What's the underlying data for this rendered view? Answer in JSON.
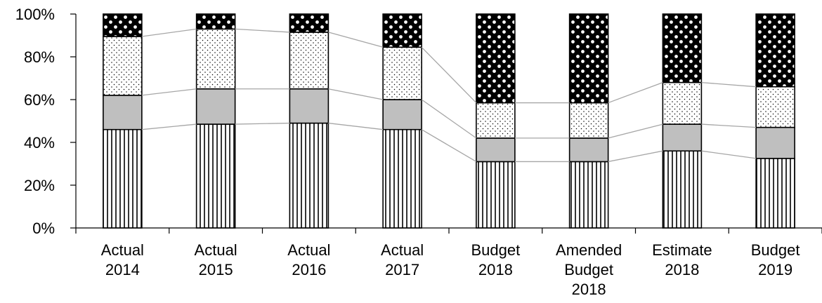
{
  "chart_data": {
    "type": "bar",
    "stacked": true,
    "normalized": true,
    "categories": [
      [
        "Actual",
        "2014"
      ],
      [
        "Actual",
        "2015"
      ],
      [
        "Actual",
        "2016"
      ],
      [
        "Actual",
        "2017"
      ],
      [
        "Budget",
        "2018"
      ],
      [
        "Amended",
        "Budget",
        "2018"
      ],
      [
        "Estimate",
        "2018"
      ],
      [
        "Budget",
        "2019"
      ]
    ],
    "series": [
      {
        "pattern": "vertical-lines",
        "values": [
          46,
          48.5,
          49,
          46,
          31,
          31,
          36,
          32.5
        ]
      },
      {
        "pattern": "gray-solid",
        "values": [
          16,
          16.5,
          16,
          14,
          11,
          11,
          12.5,
          14.5
        ]
      },
      {
        "pattern": "fine-dots",
        "values": [
          27.5,
          28,
          26.5,
          24.5,
          16.5,
          16.5,
          19.5,
          19
        ]
      },
      {
        "pattern": "black-with-white-dots",
        "values": [
          10.5,
          7,
          8.5,
          15.5,
          41.5,
          41.5,
          32,
          34
        ]
      }
    ],
    "y_ticks": [
      "0%",
      "20%",
      "40%",
      "60%",
      "80%",
      "100%"
    ],
    "ylim": [
      0,
      100
    ],
    "grid": false,
    "legend": "none",
    "series_lines": true,
    "colors": {
      "axis": "#000000",
      "bar_outline": "#000000",
      "gray_fill": "#bfbfbf",
      "connector": "#a6a6a6"
    }
  }
}
